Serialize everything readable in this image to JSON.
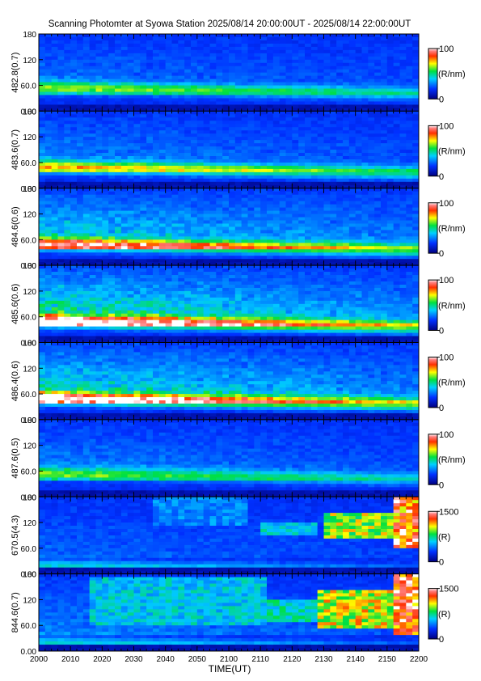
{
  "title": "Scanning Photomter at Syowa Station 2025/08/14 20:00:00UT - 2025/08/14 22:00:00UT",
  "xlabel": "TIME(UT)",
  "x_ticks": [
    "2000",
    "2010",
    "2020",
    "2030",
    "2040",
    "2050",
    "2100",
    "2110",
    "2120",
    "2130",
    "2140",
    "2150",
    "2200"
  ],
  "y_ticks": [
    "0.00",
    "60.0",
    "120",
    "180"
  ],
  "colors": {
    "low": "#00007f",
    "mid1": "#0040ff",
    "mid2": "#00e060",
    "mid3": "#ffff00",
    "mid4": "#ff2000",
    "high": "#ffffff"
  },
  "chart_data": {
    "type": "heatmap",
    "x_range": [
      "2000",
      "2200"
    ],
    "ylim": [
      0,
      180
    ],
    "panels": [
      {
        "ylabel": "482.8(0.7)",
        "cbar_max": "100",
        "cbar_min": "0",
        "cbar_unit": "(R/nm)",
        "band_center": 55,
        "band_intensity": 0.35,
        "diffuse": 0.15,
        "aurora": []
      },
      {
        "ylabel": "483.6(0.7)",
        "cbar_max": "100",
        "cbar_min": "0",
        "cbar_unit": "(R/nm)",
        "band_center": 50,
        "band_intensity": 0.45,
        "diffuse": 0.18,
        "aurora": []
      },
      {
        "ylabel": "484.6(0.6)",
        "cbar_max": "100",
        "cbar_min": "0",
        "cbar_unit": "(R/nm)",
        "band_center": 50,
        "band_intensity": 0.55,
        "diffuse": 0.35,
        "aurora": []
      },
      {
        "ylabel": "485.6(0.6)",
        "cbar_max": "100",
        "cbar_min": "0",
        "cbar_unit": "(R/nm)",
        "band_center": 50,
        "band_intensity": 0.6,
        "diffuse": 0.45,
        "aurora": []
      },
      {
        "ylabel": "486.4(0.6)",
        "cbar_max": "100",
        "cbar_min": "0",
        "cbar_unit": "(R/nm)",
        "band_center": 50,
        "band_intensity": 0.6,
        "diffuse": 0.4,
        "aurora": []
      },
      {
        "ylabel": "487.6(0.5)",
        "cbar_max": "100",
        "cbar_min": "0",
        "cbar_unit": "(R/nm)",
        "band_center": 55,
        "band_intensity": 0.3,
        "diffuse": 0.18,
        "aurora": []
      },
      {
        "ylabel": "670.5(4.3)",
        "cbar_max": "1500",
        "cbar_min": "0",
        "cbar_unit": "(R)",
        "band_center": 20,
        "band_intensity": 0.25,
        "diffuse": 0.1,
        "aurora": [
          {
            "x0": 0.3,
            "x1": 0.55,
            "y0": 110,
            "y1": 180,
            "v": 0.35
          },
          {
            "x0": 0.58,
            "x1": 0.74,
            "y0": 90,
            "y1": 120,
            "v": 0.45
          },
          {
            "x0": 0.75,
            "x1": 0.94,
            "y0": 80,
            "y1": 140,
            "v": 0.7
          },
          {
            "x0": 0.94,
            "x1": 1.0,
            "y0": 60,
            "y1": 180,
            "v": 0.95
          }
        ]
      },
      {
        "ylabel": "844.6(0.7)",
        "cbar_max": "1500",
        "cbar_min": "0",
        "cbar_unit": "(R)",
        "band_center": 20,
        "band_intensity": 0.25,
        "diffuse": 0.15,
        "aurora": [
          {
            "x0": 0.13,
            "x1": 0.6,
            "y0": 60,
            "y1": 170,
            "v": 0.45
          },
          {
            "x0": 0.6,
            "x1": 0.74,
            "y0": 70,
            "y1": 120,
            "v": 0.5
          },
          {
            "x0": 0.74,
            "x1": 0.93,
            "y0": 50,
            "y1": 140,
            "v": 0.75
          },
          {
            "x0": 0.93,
            "x1": 1.0,
            "y0": 40,
            "y1": 180,
            "v": 0.98
          }
        ]
      }
    ]
  }
}
